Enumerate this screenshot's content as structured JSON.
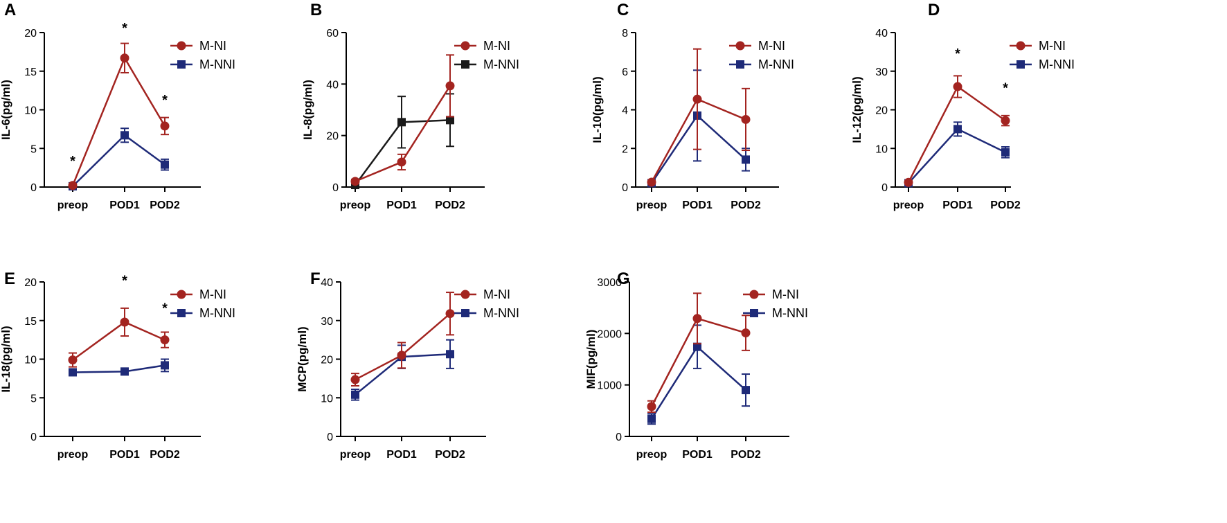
{
  "colors": {
    "m_ni": "#a32420",
    "m_nni": "#1e2a78",
    "m_nni_black": "#1a1a1a",
    "axis": "#000000"
  },
  "chart_data": [
    {
      "panel": "A",
      "type": "line",
      "ylabel": "IL-6(pg/ml)",
      "ylim": [
        0,
        20
      ],
      "yticks": [
        0,
        5,
        10,
        15,
        20
      ],
      "categories": [
        "preop",
        "POD1",
        "POD2"
      ],
      "series": [
        {
          "name": "M-NI",
          "color_key": "m_ni",
          "marker": "circle",
          "values": [
            0.2,
            16.7,
            7.9
          ],
          "errors": [
            0.2,
            1.9,
            1.1
          ]
        },
        {
          "name": "M-NNI",
          "color_key": "m_nni",
          "marker": "square",
          "values": [
            0.1,
            6.7,
            2.9
          ],
          "errors": [
            0.1,
            0.9,
            0.7
          ]
        }
      ],
      "significance": [
        {
          "index": 0,
          "value": 3.6,
          "label": "*"
        },
        {
          "index": 1,
          "value": 20.8,
          "label": "*"
        },
        {
          "index": 2,
          "value": 11.5,
          "label": "*"
        }
      ]
    },
    {
      "panel": "B",
      "type": "line",
      "ylabel": "IL-8(pg/ml)",
      "ylim": [
        0,
        60
      ],
      "yticks": [
        0,
        20,
        40,
        60
      ],
      "categories": [
        "preop",
        "POD1",
        "POD2"
      ],
      "series": [
        {
          "name": "M-NI",
          "color_key": "m_ni",
          "marker": "circle",
          "values": [
            2.2,
            9.7,
            39.3
          ],
          "errors": [
            0.8,
            3.0,
            12.0
          ]
        },
        {
          "name": "M-NNI",
          "color_key": "m_nni_black",
          "marker": "square",
          "values": [
            0.8,
            25.2,
            26.0
          ],
          "errors": [
            0.6,
            10.0,
            10.2
          ]
        }
      ],
      "significance": []
    },
    {
      "panel": "C",
      "type": "line",
      "ylabel": "IL-10(pg/ml)",
      "ylim": [
        0,
        8
      ],
      "yticks": [
        0,
        2,
        4,
        6,
        8
      ],
      "categories": [
        "preop",
        "POD1",
        "POD2"
      ],
      "series": [
        {
          "name": "M-NI",
          "color_key": "m_ni",
          "marker": "circle",
          "values": [
            0.25,
            4.55,
            3.5
          ],
          "errors": [
            0.05,
            2.6,
            1.6
          ]
        },
        {
          "name": "M-NNI",
          "color_key": "m_nni",
          "marker": "square",
          "values": [
            0.2,
            3.7,
            1.42
          ],
          "errors": [
            0.05,
            2.35,
            0.58
          ]
        }
      ],
      "significance": []
    },
    {
      "panel": "D",
      "type": "line",
      "ylabel": "IL-12(pg/ml)",
      "ylim": [
        0,
        40
      ],
      "yticks": [
        0,
        10,
        20,
        30,
        40
      ],
      "categories": [
        "preop",
        "POD1",
        "POD2"
      ],
      "series": [
        {
          "name": "M-NI",
          "color_key": "m_ni",
          "marker": "circle",
          "values": [
            1.2,
            26.0,
            17.2
          ],
          "errors": [
            0.3,
            2.8,
            1.3
          ]
        },
        {
          "name": "M-NNI",
          "color_key": "m_nni",
          "marker": "square",
          "values": [
            1.0,
            15.0,
            9.0
          ],
          "errors": [
            0.3,
            1.8,
            1.4
          ]
        }
      ],
      "significance": [
        {
          "index": 1,
          "value": 35.0,
          "label": "*"
        },
        {
          "index": 2,
          "value": 26.1,
          "label": "*"
        }
      ]
    },
    {
      "panel": "E",
      "type": "line",
      "ylabel": "IL-18(pg/ml)",
      "ylim": [
        0,
        20
      ],
      "yticks": [
        0,
        5,
        10,
        15,
        20
      ],
      "categories": [
        "preop",
        "POD1",
        "POD2"
      ],
      "series": [
        {
          "name": "M-NI",
          "color_key": "m_ni",
          "marker": "circle",
          "values": [
            9.9,
            14.8,
            12.5
          ],
          "errors": [
            0.9,
            1.8,
            1.0
          ]
        },
        {
          "name": "M-NNI",
          "color_key": "m_nni",
          "marker": "square",
          "values": [
            8.3,
            8.4,
            9.2
          ],
          "errors": [
            0.4,
            0.4,
            0.8
          ]
        }
      ],
      "significance": [
        {
          "index": 1,
          "value": 20.4,
          "label": "*"
        },
        {
          "index": 2,
          "value": 16.8,
          "label": "*"
        }
      ]
    },
    {
      "panel": "F",
      "type": "line",
      "ylabel": "MCP(pg/ml)",
      "ylim": [
        0,
        40
      ],
      "yticks": [
        0,
        10,
        20,
        30,
        40
      ],
      "categories": [
        "preop",
        "POD1",
        "POD2"
      ],
      "series": [
        {
          "name": "M-NI",
          "color_key": "m_ni",
          "marker": "circle",
          "values": [
            14.7,
            21.0,
            31.8
          ],
          "errors": [
            1.6,
            3.3,
            5.5
          ]
        },
        {
          "name": "M-NNI",
          "color_key": "m_nni",
          "marker": "square",
          "values": [
            10.8,
            20.6,
            21.3
          ],
          "errors": [
            1.4,
            3.0,
            3.7
          ]
        }
      ],
      "significance": []
    },
    {
      "panel": "G",
      "type": "line",
      "ylabel": "MIF(pg/ml)",
      "ylim": [
        0,
        3000
      ],
      "yticks": [
        0,
        1000,
        2000,
        3000
      ],
      "categories": [
        "preop",
        "POD1",
        "POD2"
      ],
      "series": [
        {
          "name": "M-NI",
          "color_key": "m_ni",
          "marker": "circle",
          "values": [
            580,
            2290,
            2010
          ],
          "errors": [
            110,
            490,
            340
          ]
        },
        {
          "name": "M-NNI",
          "color_key": "m_nni",
          "marker": "square",
          "values": [
            340,
            1740,
            900
          ],
          "errors": [
            100,
            420,
            310
          ]
        }
      ],
      "significance": []
    }
  ]
}
